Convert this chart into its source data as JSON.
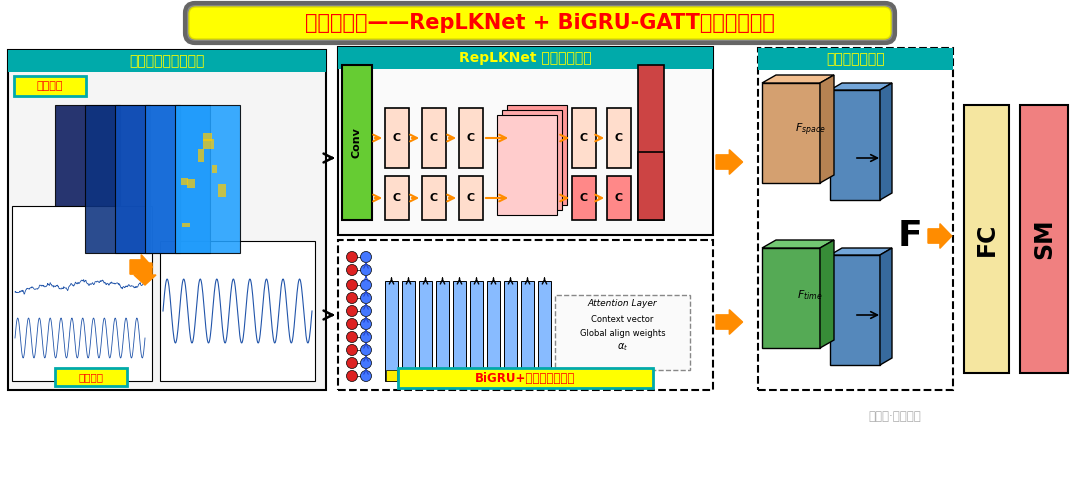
{
  "bg_color": "#ffffff",
  "title_box_bg": "#ffff00",
  "title_box_border": "#808080",
  "title_text": "基于多模态——RepLKNet + BiGRU-GATT故障诊断模型",
  "title_color": "#ff0000",
  "title_fontsize": 20,
  "section1_label": "多模态数据集预处理",
  "section2_label": "RepLKNet 大核卷积操作",
  "section3_label": "多模态特征融合",
  "section1_color": "#00aaaa",
  "label_时频图像": "时频图像",
  "label_一维序列": "一维序列",
  "label_biGRU": "BiGRU+全局注意力机制",
  "orange_arrow": "#ff8c00",
  "conv_green": "#66cc33",
  "fc_yellow": "#f5e6a0",
  "sm_pink": "#f08080"
}
